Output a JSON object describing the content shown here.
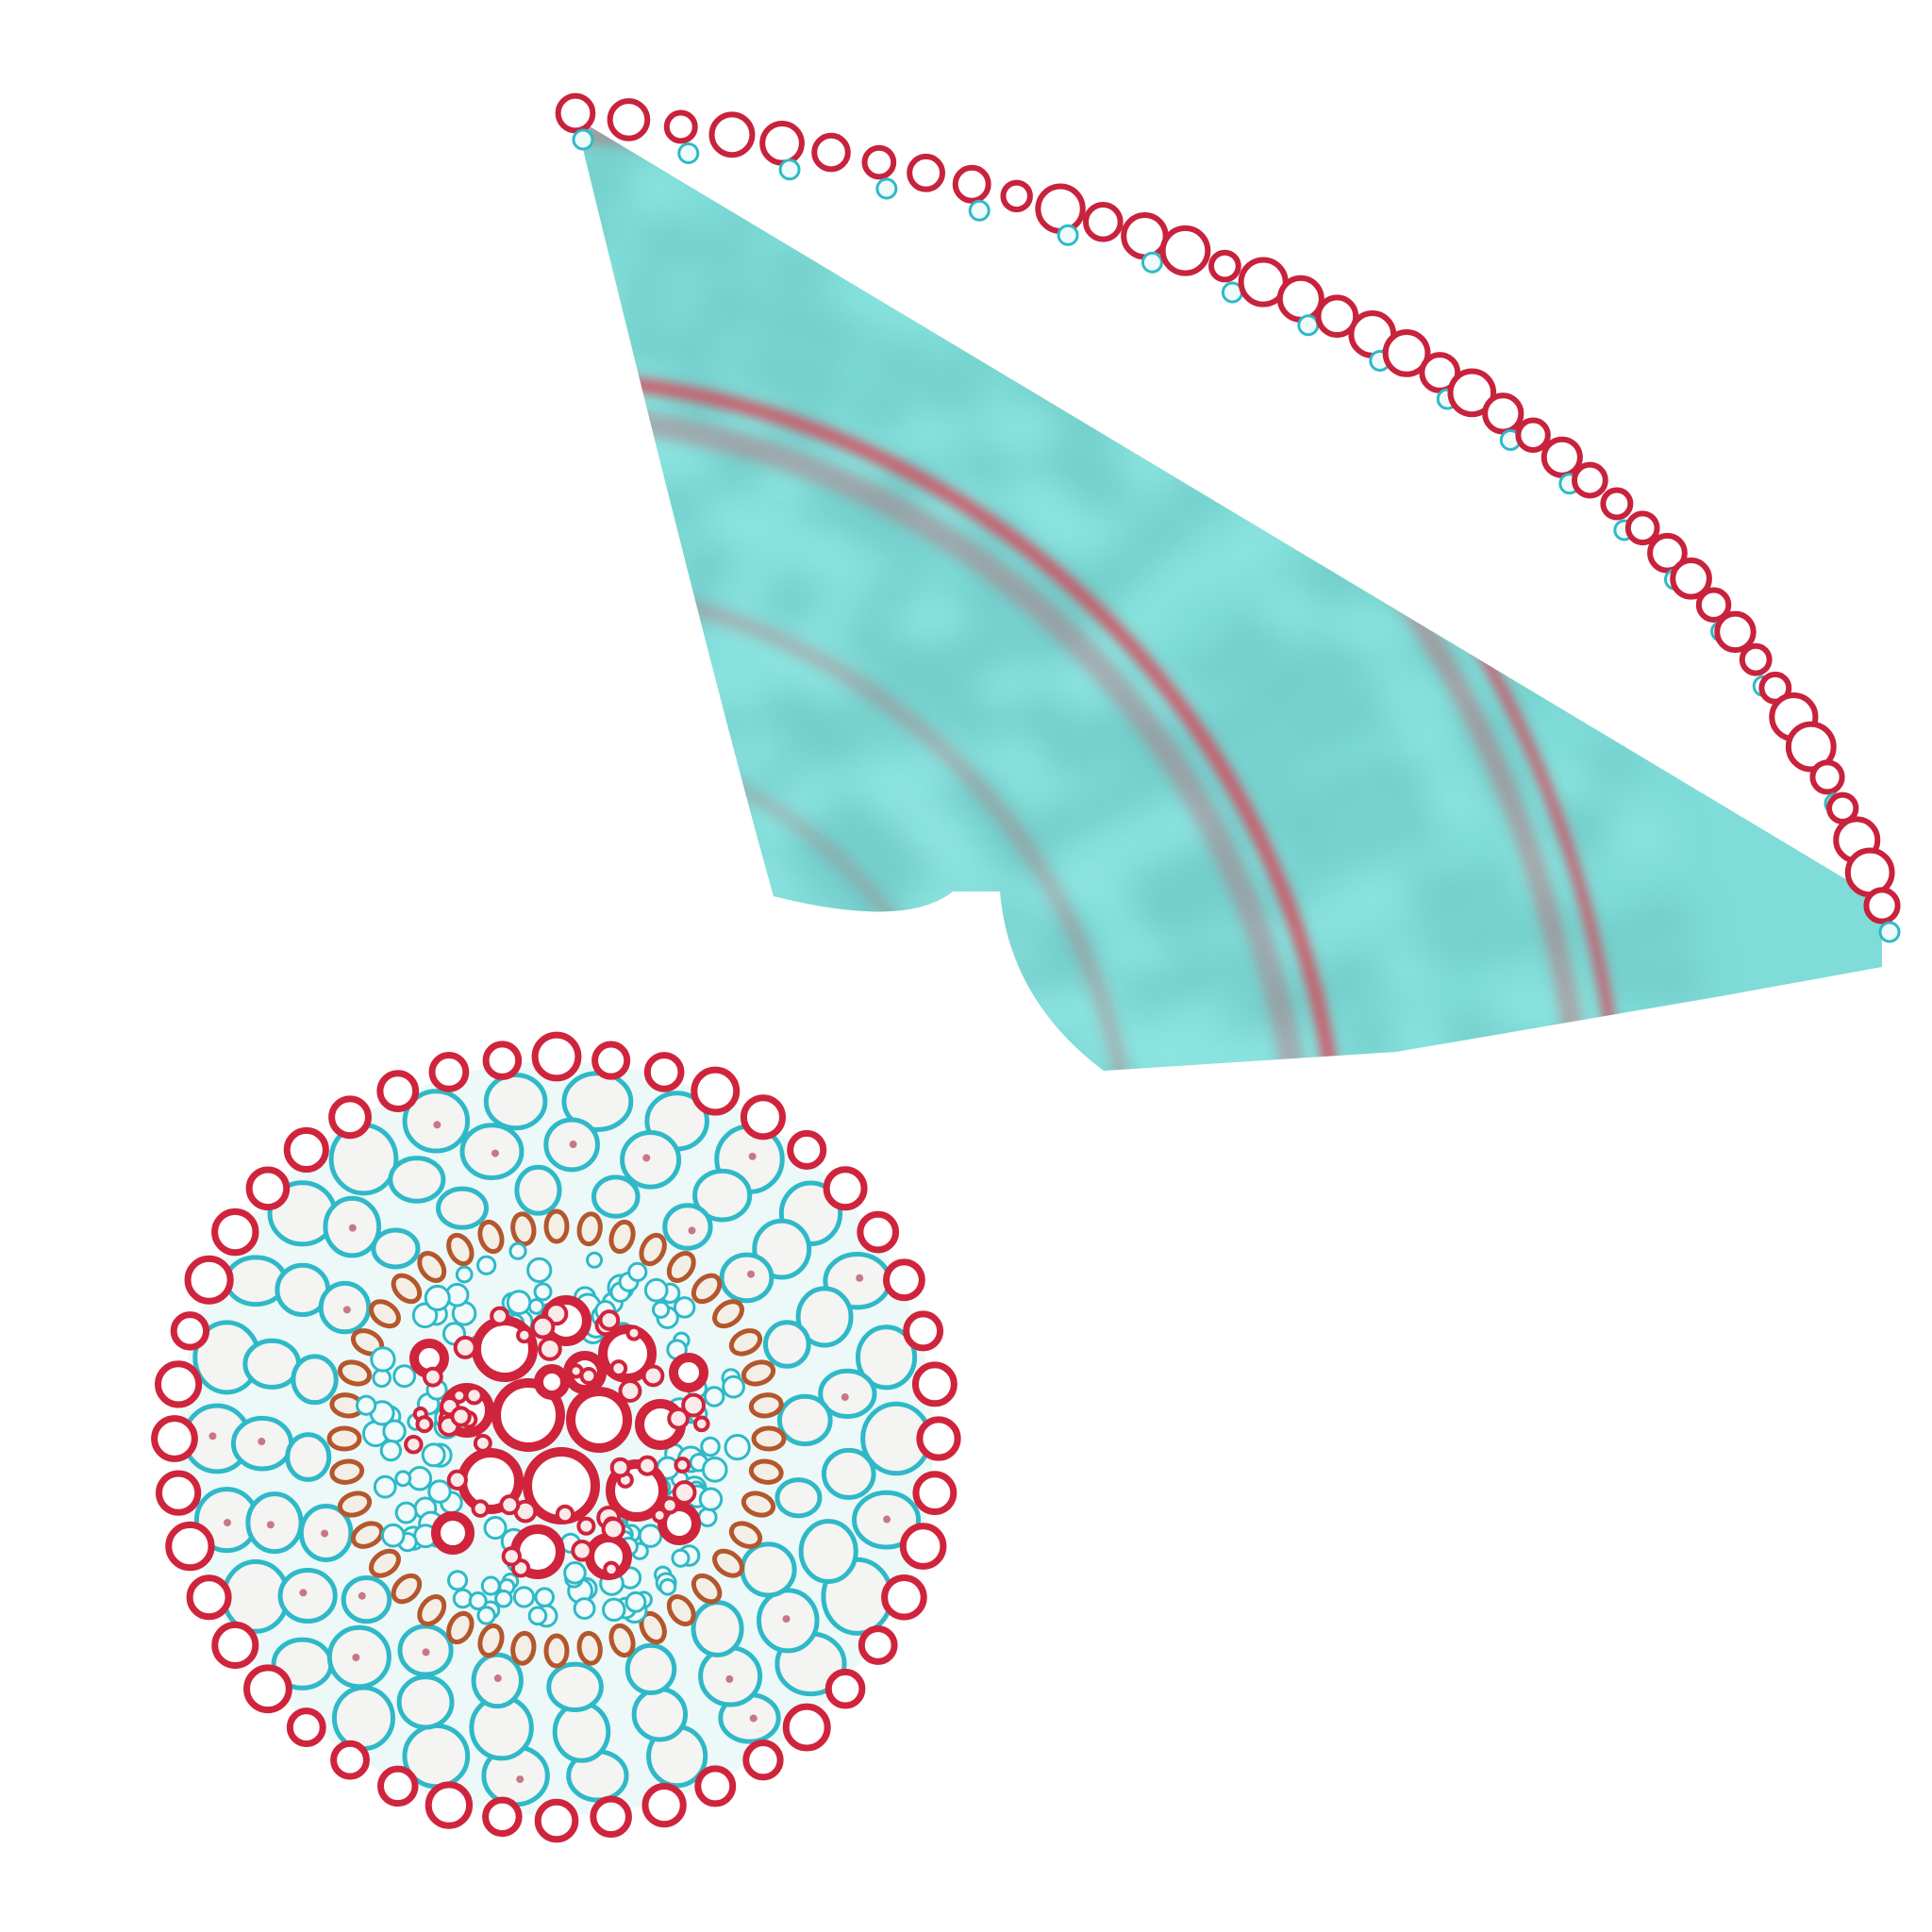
{
  "image": {
    "background_color": "#ffffff",
    "subjects": [
      {
        "name": "cortex-fan-section",
        "kind": "fan-shaped blurred tissue section",
        "base_color": "#7fdcd8",
        "band_color": "#e2384e",
        "rim_color": "#c8223c"
      },
      {
        "name": "vascular-cylinder-section",
        "kind": "circular cross section of root vascular cylinder",
        "cell_wall_color": "#2fb9c8",
        "xylem_color": "#d0243c",
        "endodermis_color": "#b5562c",
        "cell_fill_color": "#f4f4f2"
      }
    ]
  }
}
